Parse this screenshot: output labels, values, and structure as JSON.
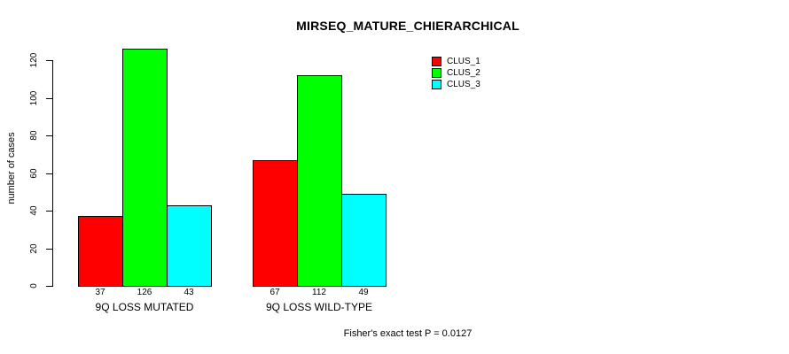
{
  "figure": {
    "title": "MIRSEQ_MATURE_CHIERARCHICAL",
    "ylabel": "number of cases",
    "footer": "Fisher's exact test P = 0.0127",
    "background_color": "#ffffff",
    "axis_color": "#000000"
  },
  "legend": {
    "position": "top-right",
    "items": [
      {
        "label": "CLUS_1",
        "color": "#ff0000"
      },
      {
        "label": "CLUS_2",
        "color": "#00ff00"
      },
      {
        "label": "CLUS_3",
        "color": "#00ffff"
      }
    ]
  },
  "chart_data": {
    "type": "bar",
    "title": "MIRSEQ_MATURE_CHIERARCHICAL",
    "xlabel": "",
    "ylabel": "number of cases",
    "categories": [
      "9Q LOSS MUTATED",
      "9Q LOSS WILD-TYPE"
    ],
    "series": [
      {
        "name": "CLUS_1",
        "color": "#ff0000",
        "values": [
          37,
          67
        ]
      },
      {
        "name": "CLUS_2",
        "color": "#00ff00",
        "values": [
          126,
          112
        ]
      },
      {
        "name": "CLUS_3",
        "color": "#00ffff",
        "values": [
          43,
          49
        ]
      }
    ],
    "bar_value_labels": [
      [
        37,
        126,
        43
      ],
      [
        67,
        112,
        49
      ]
    ],
    "yticks": [
      0,
      20,
      40,
      60,
      80,
      100,
      120
    ],
    "ylim": [
      0,
      120
    ],
    "grid": false,
    "bar_border_color": "#000000",
    "legend_position": "top-right",
    "annotation": "Fisher's exact test P = 0.0127"
  }
}
